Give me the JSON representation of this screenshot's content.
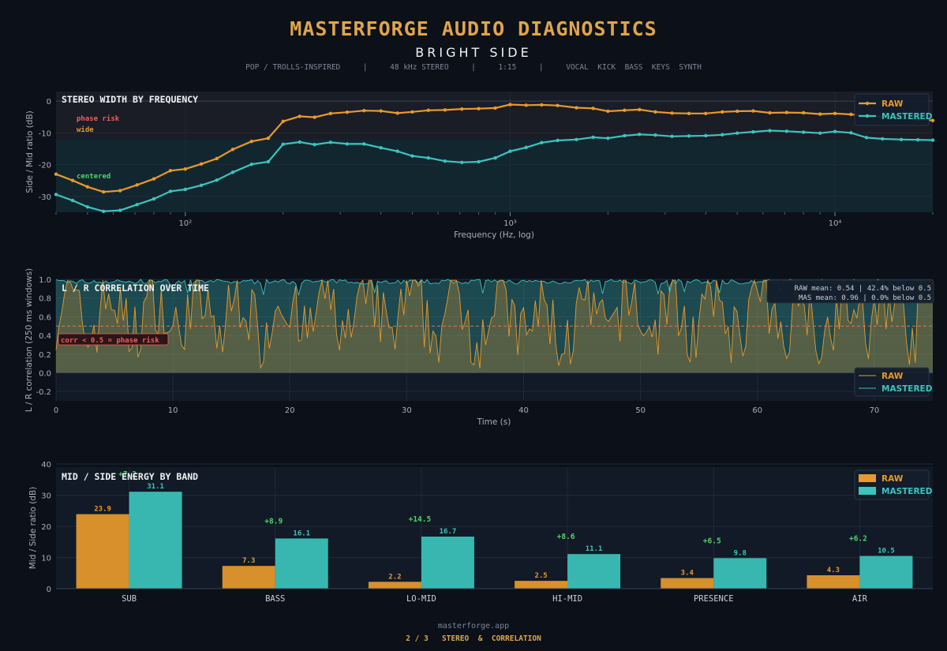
{
  "header": {
    "title": "MASTERFORGE AUDIO DIAGNOSTICS",
    "subtitle": "BRIGHT SIDE",
    "meta": "POP / TROLLS-INSPIRED     |     48 kHz STEREO     |     1:15     |     VOCAL  KICK  BASS  KEYS  SYNTH"
  },
  "footer": {
    "url": "masterforge.app",
    "page": "2 / 3   STEREO  &  CORRELATION"
  },
  "colors": {
    "raw": "#e89a2c",
    "mastered": "#3cc4bd",
    "background": "#0b1019",
    "panel": "#111a26",
    "risk": "#f0605a",
    "positive": "#4fd26a"
  },
  "chart_data": [
    {
      "type": "line",
      "title": "STEREO WIDTH BY FREQUENCY",
      "xlabel": "Frequency (Hz, log)",
      "ylabel": "Side / Mid ratio (dB)",
      "xscale": "log",
      "xlim": [
        40,
        20000
      ],
      "ylim": [
        -35,
        3
      ],
      "x_tick_labels": [
        "10²",
        "10³",
        "10⁴"
      ],
      "y_ticks": [
        0,
        -10,
        -20,
        -30
      ],
      "legend": "top-right",
      "zone_labels": {
        "phase_risk": "phase risk",
        "wide": "wide",
        "centered": "centered"
      },
      "x": [
        40,
        45,
        50,
        56,
        63,
        71,
        80,
        90,
        100,
        112,
        125,
        140,
        160,
        180,
        200,
        225,
        250,
        280,
        315,
        355,
        400,
        450,
        500,
        560,
        630,
        710,
        800,
        900,
        1000,
        1120,
        1250,
        1400,
        1600,
        1800,
        2000,
        2250,
        2500,
        2800,
        3150,
        3550,
        4000,
        4500,
        5000,
        5600,
        6300,
        7100,
        8000,
        9000,
        10000,
        11200,
        12500,
        14000,
        16000,
        18000,
        20000
      ],
      "series": [
        {
          "name": "RAW",
          "values": [
            -23.0,
            -25.0,
            -27.0,
            -28.6,
            -28.2,
            -26.4,
            -24.5,
            -21.9,
            -21.4,
            -19.8,
            -18.1,
            -15.2,
            -12.7,
            -11.7,
            -6.4,
            -4.8,
            -5.1,
            -3.9,
            -3.5,
            -3.0,
            -3.1,
            -3.8,
            -3.4,
            -2.9,
            -2.8,
            -2.5,
            -2.4,
            -2.2,
            -1.1,
            -1.3,
            -1.2,
            -1.4,
            -2.1,
            -2.3,
            -3.2,
            -2.9,
            -2.7,
            -3.4,
            -3.8,
            -3.9,
            -3.9,
            -3.4,
            -3.2,
            -3.1,
            -3.7,
            -3.6,
            -3.7,
            -4.1,
            -3.9,
            -4.2,
            -4.6,
            -5.0,
            -5.3,
            -5.7,
            -6.1
          ]
        },
        {
          "name": "MASTERED",
          "values": [
            -29.4,
            -31.3,
            -33.3,
            -34.7,
            -34.4,
            -32.6,
            -30.8,
            -28.4,
            -27.8,
            -26.5,
            -24.9,
            -22.4,
            -19.9,
            -19.1,
            -13.6,
            -12.9,
            -13.7,
            -13.0,
            -13.5,
            -13.5,
            -14.7,
            -15.8,
            -17.3,
            -17.9,
            -18.9,
            -19.3,
            -19.1,
            -17.9,
            -15.8,
            -14.6,
            -13.1,
            -12.4,
            -12.1,
            -11.4,
            -11.7,
            -10.9,
            -10.5,
            -10.7,
            -11.1,
            -11.0,
            -10.9,
            -10.6,
            -10.1,
            -9.7,
            -9.3,
            -9.5,
            -9.8,
            -10.1,
            -9.6,
            -10.0,
            -11.5,
            -11.9,
            -12.1,
            -12.2,
            -12.3
          ]
        }
      ]
    },
    {
      "type": "area",
      "title": "L / R CORRELATION OVER TIME",
      "xlabel": "Time (s)",
      "ylabel": "L / R correlation (250 ms windows)",
      "xlim": [
        0,
        75
      ],
      "ylim": [
        -0.3,
        1.0
      ],
      "x_ticks": [
        0,
        10,
        20,
        30,
        40,
        50,
        60,
        70
      ],
      "y_ticks": [
        1.0,
        0.8,
        0.6,
        0.4,
        0.2,
        0.0,
        -0.2
      ],
      "threshold": 0.5,
      "threshold_label": "corr < 0.5  =  phase risk",
      "stats": [
        "RAW mean: 0.54   |   42.4% below 0.5",
        "MAS mean: 0.96   |    0.0% below 0.5"
      ],
      "legend": "bottom-right",
      "series": [
        {
          "name": "RAW",
          "mean": 0.54,
          "pct_below": 42.4
        },
        {
          "name": "MASTERED",
          "mean": 0.96,
          "pct_below": 0.0
        }
      ]
    },
    {
      "type": "bar",
      "title": "MID / SIDE ENERGY BY BAND",
      "ylabel": "Mid / Side ratio (dB)",
      "ylim": [
        0,
        40
      ],
      "y_ticks": [
        0,
        10,
        20,
        30,
        40
      ],
      "legend": "top-right",
      "categories": [
        "SUB",
        "BASS",
        "LO-MID",
        "HI-MID",
        "PRESENCE",
        "AIR"
      ],
      "series": [
        {
          "name": "RAW",
          "values": [
            23.9,
            7.3,
            2.2,
            2.5,
            3.4,
            4.3
          ]
        },
        {
          "name": "MASTERED",
          "values": [
            31.1,
            16.1,
            16.7,
            11.1,
            9.8,
            10.5
          ]
        }
      ],
      "deltas": [
        "+7.2",
        "+8.9",
        "+14.5",
        "+8.6",
        "+6.5",
        "+6.2"
      ]
    }
  ]
}
